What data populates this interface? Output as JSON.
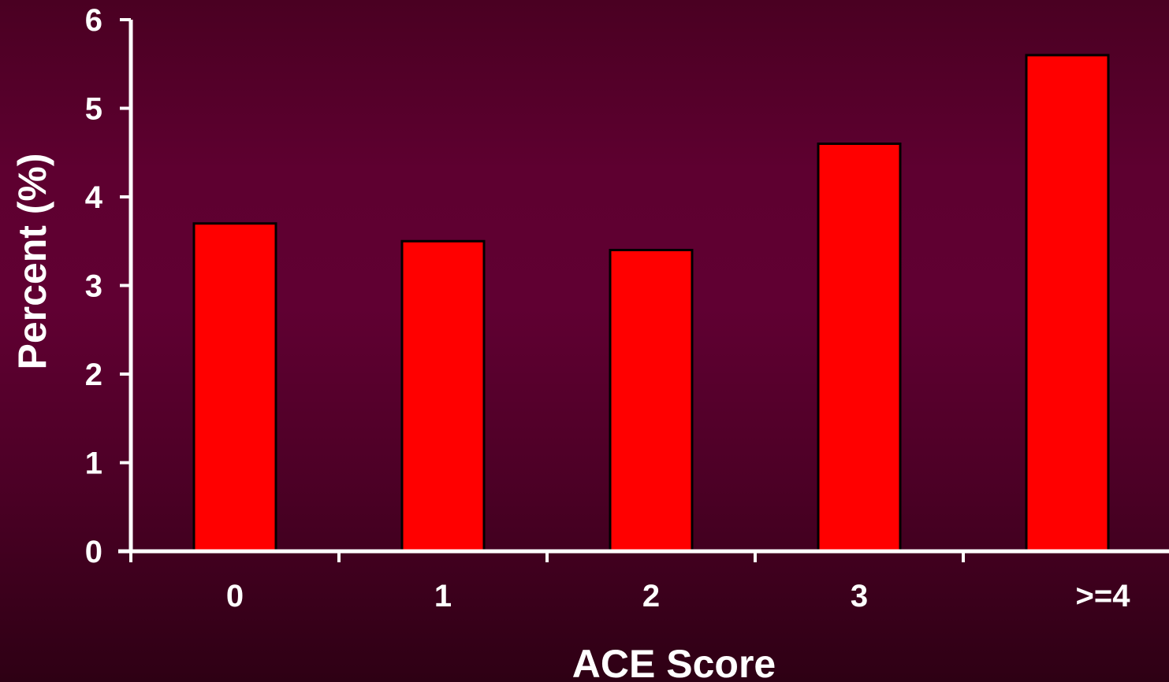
{
  "chart_data": {
    "type": "bar",
    "categories": [
      "0",
      "1",
      "2",
      "3",
      ">=4"
    ],
    "values": [
      3.7,
      3.5,
      3.4,
      4.6,
      5.6
    ],
    "xlabel": "ACE Score",
    "ylabel": "Percent  (%)",
    "ylim": [
      0,
      6
    ],
    "yticks": [
      "0",
      "1",
      "2",
      "3",
      "4",
      "5",
      "6"
    ],
    "grid": false,
    "colors": {
      "bar_fill": "#ff0000",
      "bar_stroke": "#000000",
      "axis": "#ffffff",
      "text": "#ffffff"
    }
  }
}
